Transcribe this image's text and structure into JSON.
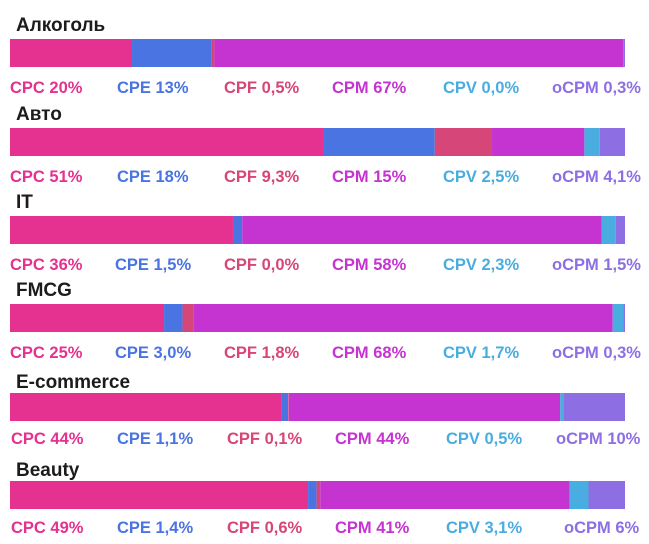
{
  "chart_data": {
    "type": "bar",
    "orientation": "horizontal-stacked-100",
    "segments": [
      {
        "name": "CPC",
        "color": "#e5318f"
      },
      {
        "name": "CPE",
        "color": "#4a74e2"
      },
      {
        "name": "CPF",
        "color": "#d64678"
      },
      {
        "name": "CPM",
        "color": "#c534d0"
      },
      {
        "name": "CPV",
        "color": "#4aaddf"
      },
      {
        "name": "oCPM",
        "color": "#8d6fe3"
      }
    ],
    "categories": [
      "Алкоголь",
      "Авто",
      "IT",
      "FMCG",
      "E-commerce",
      "Beauty"
    ],
    "values": [
      [
        20,
        13,
        0.5,
        67,
        0.0,
        0.3
      ],
      [
        51,
        18,
        9.3,
        15,
        2.5,
        4.1
      ],
      [
        36,
        1.5,
        0.0,
        58,
        2.3,
        1.5
      ],
      [
        25,
        3.0,
        1.8,
        68,
        1.7,
        0.3
      ],
      [
        44,
        1.1,
        0.1,
        44,
        0.5,
        10
      ],
      [
        49,
        1.4,
        0.6,
        41,
        3.1,
        6
      ]
    ],
    "labels": [
      [
        "CPC 20%",
        "CPE 13%",
        "CPF 0,5%",
        "CPM 67%",
        "CPV 0,0%",
        "oCPM 0,3%"
      ],
      [
        "CPC 51%",
        "CPE 18%",
        "CPF 9,3%",
        "CPM 15%",
        "CPV 2,5%",
        "oCPM 4,1%"
      ],
      [
        "CPC 36%",
        "CPE 1,5%",
        "CPF 0,0%",
        "CPM 58%",
        "CPV 2,3%",
        "oCPM 1,5%"
      ],
      [
        "CPC 25%",
        "CPE 3,0%",
        "CPF 1,8%",
        "CPM 68%",
        "CPV 1,7%",
        "oCPM 0,3%"
      ],
      [
        "CPC 44%",
        "CPE 1,1%",
        "CPF 0,1%",
        "CPM 44%",
        "CPV 0,5%",
        "oCPM 10%"
      ],
      [
        "CPC 49%",
        "CPE 1,4%",
        "CPF 0,6%",
        "CPM 41%",
        "CPV 3,1%",
        "oCPM 6%"
      ]
    ],
    "legend": "none"
  }
}
